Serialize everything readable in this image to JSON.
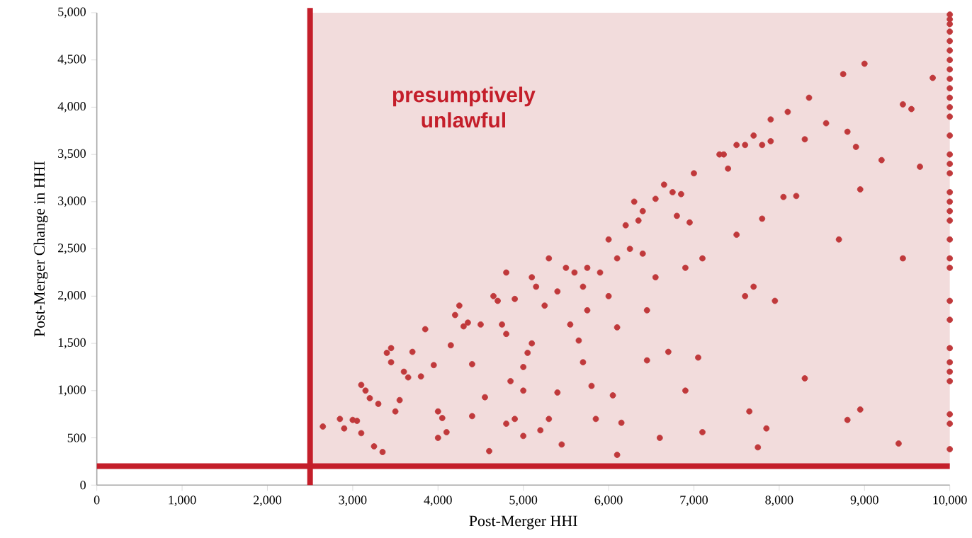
{
  "chart_data": {
    "type": "scatter",
    "xlabel": "Post-Merger HHI",
    "ylabel": "Post-Merger Change in HHI",
    "x": [
      2650,
      2850,
      2900,
      3000,
      3050,
      3100,
      3100,
      3150,
      3200,
      3250,
      3300,
      3350,
      3400,
      3450,
      3450,
      3500,
      3550,
      3600,
      3650,
      3700,
      3800,
      3850,
      3950,
      4000,
      4000,
      4050,
      4100,
      4150,
      4200,
      4250,
      4300,
      4350,
      4400,
      4400,
      4500,
      4550,
      4600,
      4650,
      4700,
      4750,
      4800,
      4800,
      4800,
      4850,
      4900,
      4900,
      5000,
      5000,
      5000,
      5050,
      5100,
      5100,
      5150,
      5200,
      5250,
      5300,
      5300,
      5400,
      5400,
      5450,
      5500,
      5550,
      5600,
      5650,
      5700,
      5700,
      5750,
      5750,
      5800,
      5850,
      5900,
      6000,
      6000,
      6050,
      6100,
      6100,
      6100,
      6150,
      6200,
      6250,
      6300,
      6350,
      6400,
      6400,
      6450,
      6450,
      6550,
      6550,
      6600,
      6650,
      6700,
      6750,
      6800,
      6850,
      6900,
      6900,
      6950,
      7000,
      7050,
      7100,
      7100,
      7300,
      7350,
      7400,
      7500,
      7500,
      7600,
      7600,
      7650,
      7700,
      7700,
      7750,
      7800,
      7800,
      7850,
      7900,
      7900,
      7950,
      8050,
      8100,
      8200,
      8300,
      8350,
      8300,
      8550,
      8700,
      8750,
      8800,
      8800,
      8900,
      8950,
      8950,
      9000,
      9200,
      9400,
      9450,
      9450,
      9550,
      9650,
      9800,
      10000,
      10000,
      10000,
      10000,
      10000,
      10000,
      10000,
      10000,
      10000,
      10000,
      10000,
      10000,
      10000,
      10000,
      10000,
      10000,
      10000,
      10000,
      10000,
      10000,
      10000,
      10000,
      10000,
      10000,
      10000,
      10000,
      10000,
      10000,
      10000,
      10000,
      10000,
      10000,
      10000
    ],
    "series": [
      {
        "color": "#c0393b",
        "values": [
          620,
          700,
          600,
          690,
          680,
          550,
          1060,
          1000,
          920,
          410,
          860,
          350,
          1400,
          1450,
          1300,
          780,
          900,
          1200,
          1140,
          1410,
          1150,
          1650,
          1270,
          780,
          500,
          710,
          560,
          1480,
          1800,
          1900,
          1680,
          1720,
          1280,
          730,
          1700,
          930,
          360,
          2000,
          1950,
          1700,
          2250,
          1600,
          650,
          1100,
          1970,
          700,
          1000,
          1250,
          520,
          1400,
          1500,
          2200,
          2100,
          580,
          1900,
          2400,
          700,
          980,
          2050,
          430,
          2300,
          1700,
          2250,
          1530,
          2100,
          1300,
          2300,
          1850,
          1050,
          700,
          2250,
          2600,
          2000,
          950,
          2400,
          1670,
          320,
          660,
          2750,
          2500,
          3000,
          2800,
          2900,
          2450,
          1850,
          1320,
          3030,
          2200,
          500,
          3180,
          1410,
          3100,
          2850,
          3080,
          2300,
          1000,
          2780,
          3300,
          1350,
          2400,
          560,
          3500,
          3500,
          3350,
          2650,
          3600,
          3600,
          2000,
          780,
          3700,
          2100,
          400,
          2820,
          3600,
          600,
          3870,
          3640,
          1950,
          3050,
          3950,
          3060,
          3660,
          4100,
          1130,
          3830,
          2600,
          4350,
          3740,
          690,
          3580,
          3130,
          800,
          4460,
          3440,
          440,
          2400,
          4030,
          3980,
          3370,
          4310,
          4980,
          4930,
          4880,
          4800,
          4700,
          4600,
          4500,
          4400,
          4300,
          4200,
          4100,
          4000,
          3900,
          3700,
          3500,
          3400,
          3300,
          3100,
          3000,
          2900,
          2800,
          2600,
          2400,
          2300,
          1950,
          1750,
          1450,
          1300,
          1200,
          1100,
          750,
          650,
          380
        ]
      }
    ],
    "grid": false,
    "xlim": [
      0,
      10000
    ],
    "ylim": [
      0,
      5000
    ],
    "xticks": [
      0,
      {
        "value": 1000,
        "label": "1,000"
      },
      {
        "value": 2000,
        "label": "2,000"
      },
      {
        "value": 3000,
        "label": "3,000"
      },
      {
        "value": 4000,
        "label": "4,000"
      },
      {
        "value": 5000,
        "label": "5,000"
      },
      {
        "value": 6000,
        "label": "6,000"
      },
      {
        "value": 7000,
        "label": "7,000"
      },
      {
        "value": 8000,
        "label": "8,000"
      },
      {
        "value": 9000,
        "label": "9,000"
      },
      {
        "value": 10000,
        "label": "10,000"
      }
    ],
    "yticks": [
      0,
      500,
      {
        "value": 1000,
        "label": "1,000"
      },
      {
        "value": 1500,
        "label": "1,500"
      },
      {
        "value": 2000,
        "label": "2,000"
      },
      {
        "value": 2500,
        "label": "2,500"
      },
      {
        "value": 3000,
        "label": "3,000"
      },
      {
        "value": 3500,
        "label": "3,500"
      },
      {
        "value": 4000,
        "label": "4,000"
      },
      {
        "value": 4500,
        "label": "4,500"
      },
      {
        "value": 5000,
        "label": "5,000"
      }
    ],
    "ref_lines": [
      {
        "axis": "x",
        "value": 2500,
        "color": "#c41e2a"
      },
      {
        "axis": "y",
        "value": 200,
        "color": "#c41e2a"
      }
    ],
    "bands": [
      {
        "axis": "x",
        "from": 2500,
        "to": 10000,
        "label": "presumptively unlawful",
        "color": "#f2dcdc"
      }
    ]
  }
}
